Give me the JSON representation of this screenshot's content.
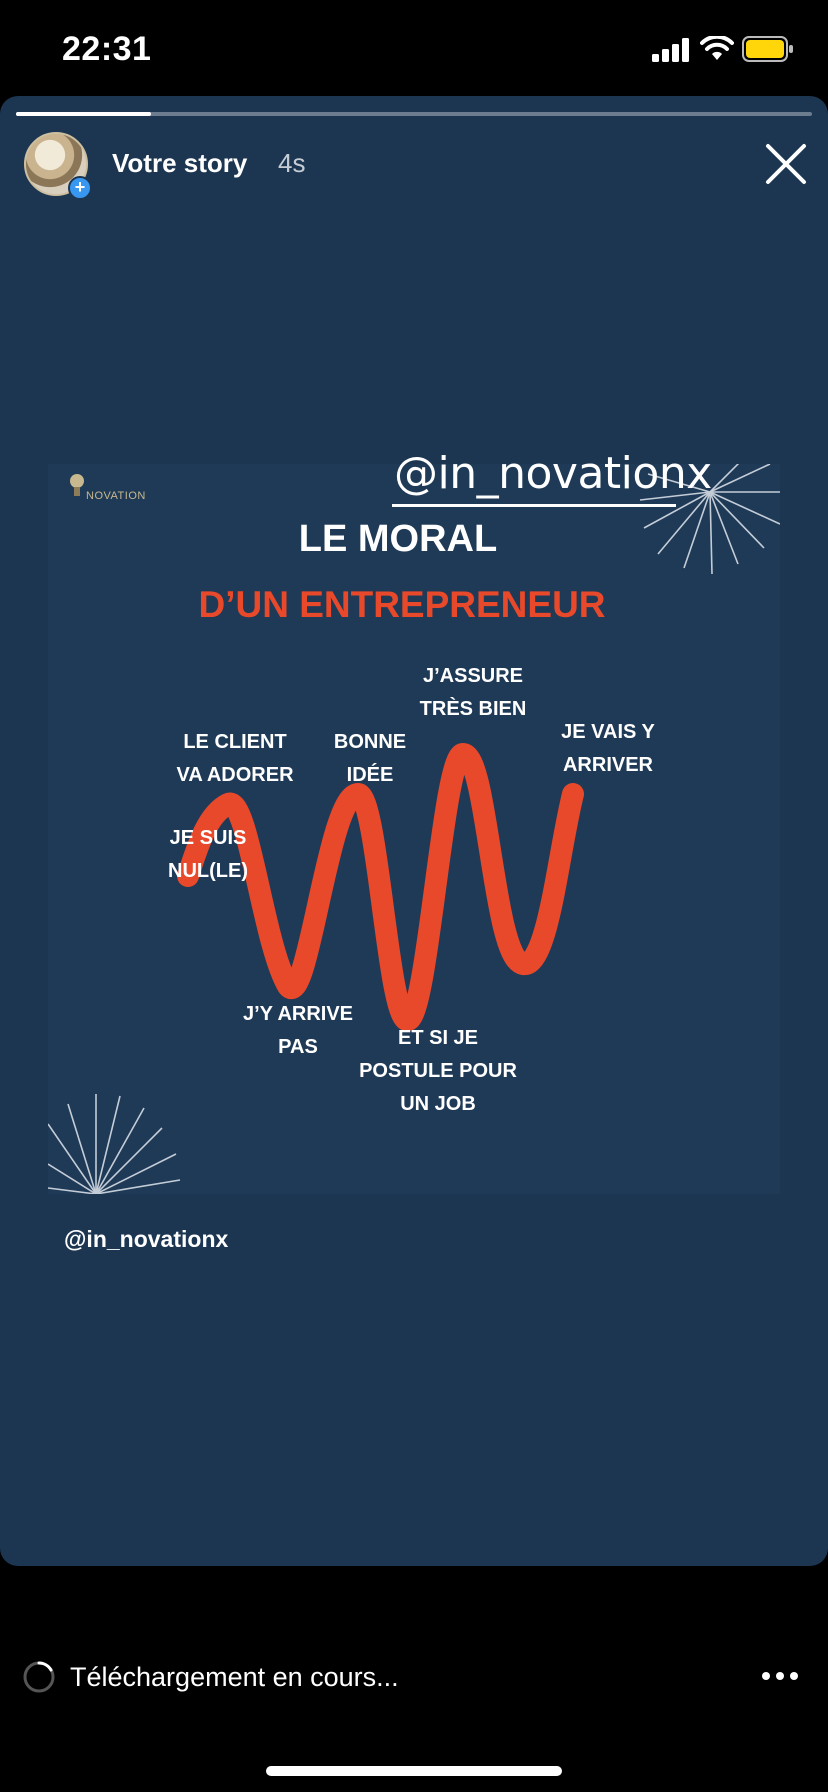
{
  "status_bar": {
    "time": "22:31"
  },
  "story": {
    "progress": 0.17,
    "user": "Votre story",
    "time_ago": "4s",
    "mention_sticker": "@in_novationx",
    "caption": "@in_novationx"
  },
  "post": {
    "brand": "NOVATION",
    "title_line1": "LE MORAL",
    "title_line2": "D’UN ENTREPRENEUR",
    "title_color": "#e8492a",
    "labels": {
      "le_client": "LE CLIENT\nVA ADORER",
      "bonne_idee": "BONNE\nIDÉE",
      "jassure": "J’ASSURE\nTRÈS BIEN",
      "je_vais": "JE VAIS Y\nARRIVER",
      "je_suis_nul": "JE SUIS\nNUL(LE)",
      "jy_arrive_pas": "J’Y ARRIVE\nPAS",
      "et_si_je": "ET SI JE\nPOSTULE POUR\nUN JOB"
    }
  },
  "bottom_bar": {
    "download_status": "Téléchargement en cours..."
  },
  "icons": {
    "close": "close-icon",
    "more": "more-icon",
    "spinner": "loading-spinner-icon"
  }
}
